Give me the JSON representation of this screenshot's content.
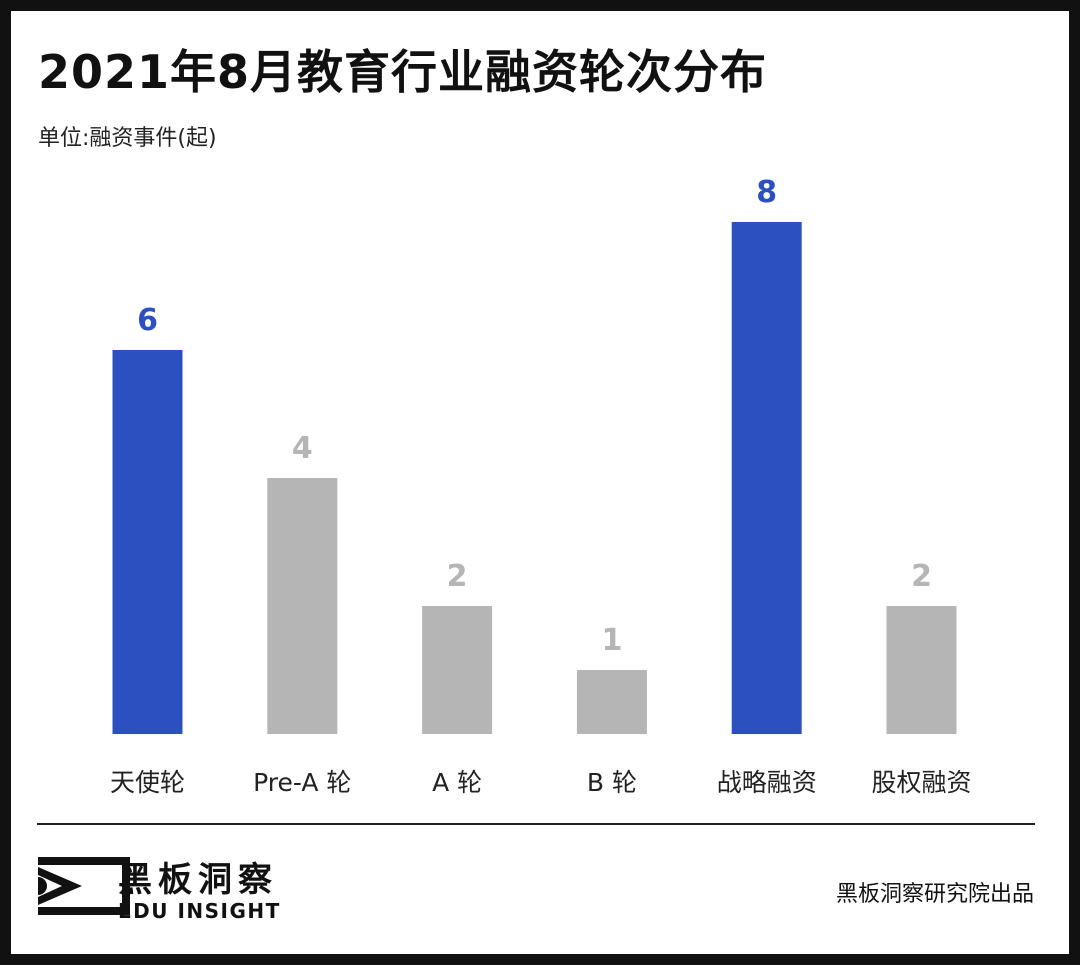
{
  "header": {
    "title": "2021年8月教育行业融资轮次分布",
    "unit": "单位:融资事件(起)"
  },
  "colors": {
    "highlight": "#2c50c0",
    "normal": "#b5b5b5",
    "category_text": "#222222"
  },
  "chart_data": {
    "type": "bar",
    "title": "2021年8月教育行业融资轮次分布",
    "xlabel": "",
    "ylabel": "单位:融资事件(起)",
    "categories": [
      "天使轮",
      "Pre-A 轮",
      "A 轮",
      "B 轮",
      "战略融资",
      "股权融资"
    ],
    "values": [
      6,
      4,
      2,
      1,
      8,
      2
    ],
    "highlighted": [
      true,
      false,
      false,
      false,
      true,
      false
    ],
    "ylim": [
      0,
      8
    ],
    "grid": false,
    "legend": "none"
  },
  "footer": {
    "logo_cn": "黑板洞察",
    "logo_en": "EDU INSIGHT",
    "credit": "黑板洞察研究院出品"
  }
}
